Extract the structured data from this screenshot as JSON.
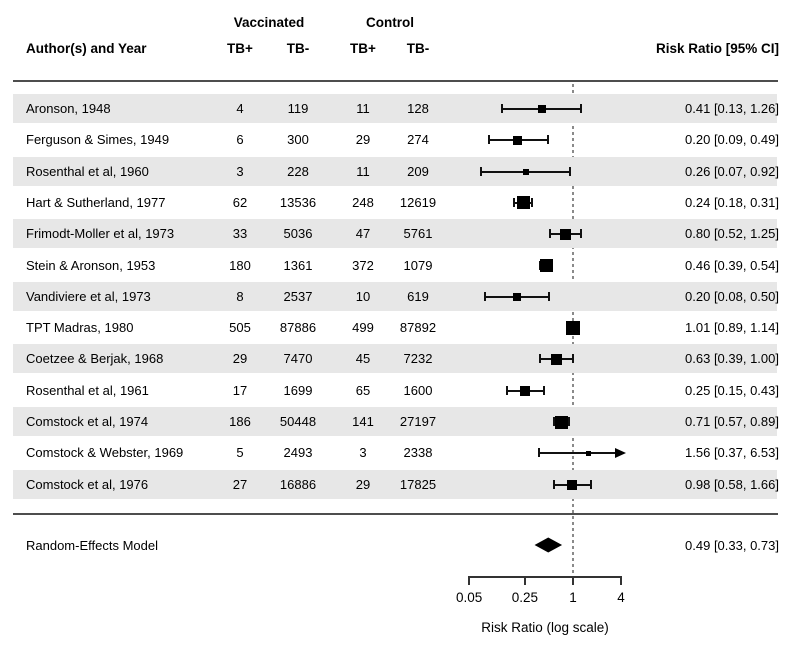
{
  "header": {
    "group_vaccinated": "Vaccinated",
    "group_control": "Control",
    "author_col": "Author(s) and Year",
    "subcols": [
      "TB+",
      "TB-",
      "TB+",
      "TB-"
    ],
    "rr_col": "Risk Ratio [95% CI]"
  },
  "chart_data": {
    "type": "scatter",
    "subtype": "forest-plot",
    "log_scale": true,
    "xlabel": "Risk Ratio (log scale)",
    "x_ticks": [
      0.05,
      0.25,
      1,
      4
    ],
    "x_tick_labels": [
      "0.05",
      "0.25",
      "1",
      "4"
    ],
    "x_range": [
      0.05,
      4
    ],
    "reference_line": 1,
    "legend": "none",
    "studies": [
      {
        "author": "Aronson, 1948",
        "v_tbp": "4",
        "v_tbm": "119",
        "c_tbp": "11",
        "c_tbm": "128",
        "rr": 0.41,
        "lo": 0.13,
        "hi": 1.26,
        "rr_text": "0.41 [0.13, 1.26]",
        "size": 8
      },
      {
        "author": "Ferguson & Simes, 1949",
        "v_tbp": "6",
        "v_tbm": "300",
        "c_tbp": "29",
        "c_tbm": "274",
        "rr": 0.2,
        "lo": 0.09,
        "hi": 0.49,
        "rr_text": "0.20 [0.09, 0.49]",
        "size": 9
      },
      {
        "author": "Rosenthal et al, 1960",
        "v_tbp": "3",
        "v_tbm": "228",
        "c_tbp": "11",
        "c_tbm": "209",
        "rr": 0.26,
        "lo": 0.07,
        "hi": 0.92,
        "rr_text": "0.26 [0.07, 0.92]",
        "size": 6
      },
      {
        "author": "Hart & Sutherland, 1977",
        "v_tbp": "62",
        "v_tbm": "13536",
        "c_tbp": "248",
        "c_tbm": "12619",
        "rr": 0.24,
        "lo": 0.18,
        "hi": 0.31,
        "rr_text": "0.24 [0.18, 0.31]",
        "size": 13
      },
      {
        "author": "Frimodt-Moller et al, 1973",
        "v_tbp": "33",
        "v_tbm": "5036",
        "c_tbp": "47",
        "c_tbm": "5761",
        "rr": 0.8,
        "lo": 0.52,
        "hi": 1.25,
        "rr_text": "0.80 [0.52, 1.25]",
        "size": 11
      },
      {
        "author": "Stein & Aronson, 1953",
        "v_tbp": "180",
        "v_tbm": "1361",
        "c_tbp": "372",
        "c_tbm": "1079",
        "rr": 0.46,
        "lo": 0.39,
        "hi": 0.54,
        "rr_text": "0.46 [0.39, 0.54]",
        "size": 13
      },
      {
        "author": "Vandiviere et al, 1973",
        "v_tbp": "8",
        "v_tbm": "2537",
        "c_tbp": "10",
        "c_tbm": "619",
        "rr": 0.2,
        "lo": 0.08,
        "hi": 0.5,
        "rr_text": "0.20 [0.08, 0.50]",
        "size": 8
      },
      {
        "author": "TPT Madras, 1980",
        "v_tbp": "505",
        "v_tbm": "87886",
        "c_tbp": "499",
        "c_tbm": "87892",
        "rr": 1.01,
        "lo": 0.89,
        "hi": 1.14,
        "rr_text": "1.01 [0.89, 1.14]",
        "size": 14
      },
      {
        "author": "Coetzee & Berjak, 1968",
        "v_tbp": "29",
        "v_tbm": "7470",
        "c_tbp": "45",
        "c_tbm": "7232",
        "rr": 0.63,
        "lo": 0.39,
        "hi": 1.0,
        "rr_text": "0.63 [0.39, 1.00]",
        "size": 11
      },
      {
        "author": "Rosenthal et al, 1961",
        "v_tbp": "17",
        "v_tbm": "1699",
        "c_tbp": "65",
        "c_tbm": "1600",
        "rr": 0.25,
        "lo": 0.15,
        "hi": 0.43,
        "rr_text": "0.25 [0.15, 0.43]",
        "size": 10
      },
      {
        "author": "Comstock et al, 1974",
        "v_tbp": "186",
        "v_tbm": "50448",
        "c_tbp": "141",
        "c_tbm": "27197",
        "rr": 0.71,
        "lo": 0.57,
        "hi": 0.89,
        "rr_text": "0.71 [0.57, 0.89]",
        "size": 13
      },
      {
        "author": "Comstock & Webster, 1969",
        "v_tbp": "5",
        "v_tbm": "2493",
        "c_tbp": "3",
        "c_tbm": "2338",
        "rr": 1.56,
        "lo": 0.37,
        "hi": 6.53,
        "rr_text": "1.56 [0.37, 6.53]",
        "size": 5
      },
      {
        "author": "Comstock et al, 1976",
        "v_tbp": "27",
        "v_tbm": "16886",
        "c_tbp": "29",
        "c_tbm": "17825",
        "rr": 0.98,
        "lo": 0.58,
        "hi": 1.66,
        "rr_text": "0.98 [0.58, 1.66]",
        "size": 10
      }
    ],
    "summary": {
      "label": "Random-Effects Model",
      "rr": 0.49,
      "lo": 0.33,
      "hi": 0.73,
      "rr_text": "0.49 [0.33, 0.73]"
    }
  },
  "colors": {
    "band": "#e7e7e7",
    "separator": "#4d4d4d",
    "marker": "#000000",
    "reference_dotted": "#8a8a8a"
  }
}
